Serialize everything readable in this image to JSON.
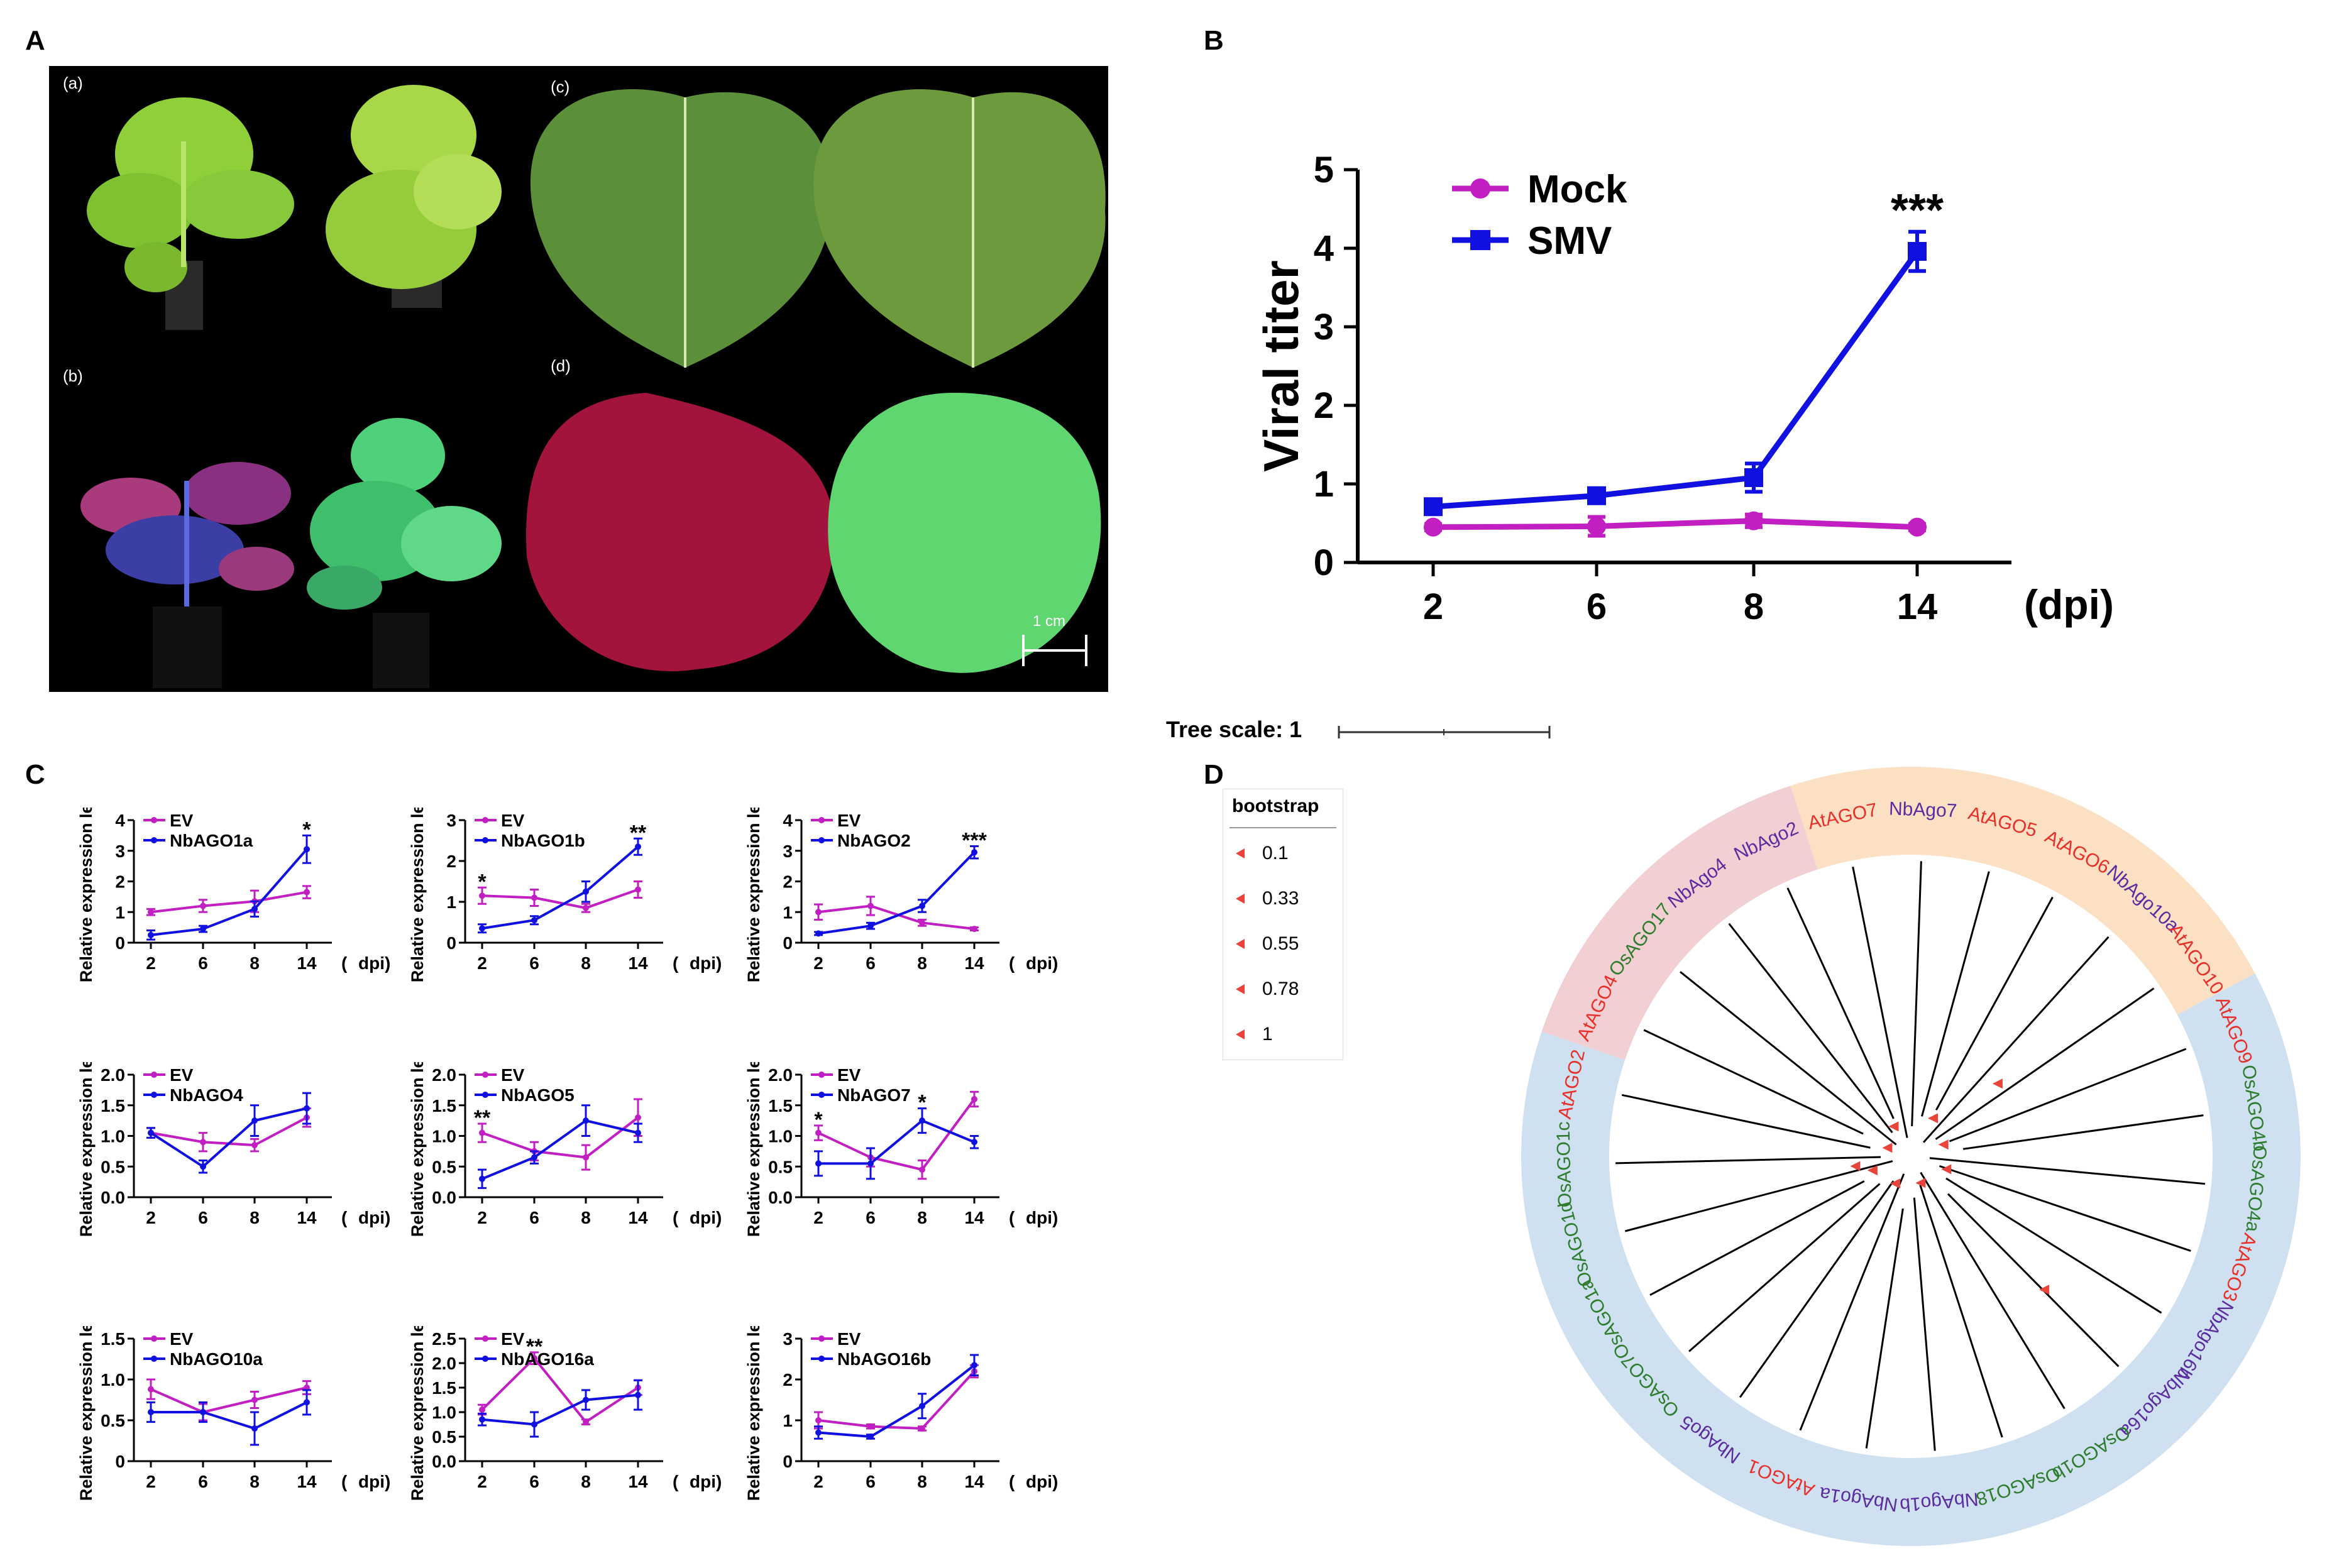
{
  "panels": {
    "a": "A",
    "b": "B",
    "c": "C",
    "d": "D"
  },
  "photo": {
    "sub_a": "(a)",
    "sub_b": "(b)",
    "sub_c": "(c)",
    "sub_d": "(d)",
    "scale": "1 cm"
  },
  "colors": {
    "mock": "#c21fc3",
    "smv": "#1010e0",
    "ev": "#c21fc3",
    "ago": "#1010e0",
    "red_label": "#e8302a",
    "purple_label": "#5a2ca0",
    "green_label": "#2e7d2e",
    "pink_band": "#f2cfd2",
    "orange_band": "#fbe0c4",
    "blue_band": "#cfe0f1"
  },
  "chart_data": [
    {
      "type": "line",
      "id": "B",
      "ylabel": "Viral titer",
      "xlabel": "(dpi)",
      "categories": [
        "2",
        "6",
        "8",
        "14"
      ],
      "ylim": [
        0,
        5
      ],
      "yticks": [
        "0",
        "1",
        "2",
        "3",
        "4",
        "5"
      ],
      "series": [
        {
          "name": "Mock",
          "values": [
            0.45,
            0.46,
            0.53,
            0.45
          ],
          "errors": [
            0.04,
            0.12,
            0.08,
            0.04
          ]
        },
        {
          "name": "SMV",
          "values": [
            0.71,
            0.85,
            1.08,
            3.96
          ],
          "errors": [
            0.05,
            0.05,
            0.18,
            0.25
          ]
        }
      ],
      "annotations": [
        {
          "category": "14",
          "text": "***"
        }
      ]
    },
    {
      "type": "line",
      "id": "C1",
      "ylabel": "Relative expression level",
      "xlabel": "dpi",
      "categories": [
        "2",
        "6",
        "8",
        "14"
      ],
      "ylim": [
        0,
        4
      ],
      "yticks": [
        "0",
        "1",
        "2",
        "3",
        "4"
      ],
      "series": [
        {
          "name": "EV",
          "values": [
            1.0,
            1.2,
            1.35,
            1.65
          ],
          "errors": [
            0.1,
            0.2,
            0.35,
            0.2
          ]
        },
        {
          "name": "NbAGO1a",
          "values": [
            0.25,
            0.45,
            1.1,
            3.05
          ],
          "errors": [
            0.15,
            0.1,
            0.25,
            0.45
          ]
        }
      ],
      "annotations": [
        {
          "category": "14",
          "text": "*"
        }
      ]
    },
    {
      "type": "line",
      "id": "C2",
      "ylabel": "Relative expression level",
      "xlabel": "dpi",
      "categories": [
        "2",
        "6",
        "8",
        "14"
      ],
      "ylim": [
        0,
        3
      ],
      "yticks": [
        "0",
        "1",
        "2",
        "3"
      ],
      "series": [
        {
          "name": "EV",
          "values": [
            1.15,
            1.1,
            0.85,
            1.3
          ],
          "errors": [
            0.2,
            0.2,
            0.1,
            0.2
          ]
        },
        {
          "name": "NbAGO1b",
          "values": [
            0.35,
            0.55,
            1.25,
            2.35
          ],
          "errors": [
            0.1,
            0.1,
            0.25,
            0.2
          ]
        }
      ],
      "annotations": [
        {
          "category": "2",
          "text": "*"
        },
        {
          "category": "14",
          "text": "**"
        }
      ]
    },
    {
      "type": "line",
      "id": "C3",
      "ylabel": "Relative expression level",
      "xlabel": "dpi",
      "categories": [
        "2",
        "6",
        "8",
        "14"
      ],
      "ylim": [
        0,
        4
      ],
      "yticks": [
        "0",
        "1",
        "2",
        "3",
        "4"
      ],
      "series": [
        {
          "name": "EV",
          "values": [
            1.0,
            1.2,
            0.65,
            0.45
          ],
          "errors": [
            0.25,
            0.3,
            0.1,
            0.05
          ]
        },
        {
          "name": "NbAGO2",
          "values": [
            0.3,
            0.55,
            1.2,
            2.95
          ],
          "errors": [
            0.05,
            0.1,
            0.2,
            0.2
          ]
        }
      ],
      "annotations": [
        {
          "category": "14",
          "text": "***"
        }
      ]
    },
    {
      "type": "line",
      "id": "C4",
      "ylabel": "Relative expression level",
      "xlabel": "dpi",
      "categories": [
        "2",
        "6",
        "8",
        "14"
      ],
      "ylim": [
        0,
        2.0
      ],
      "yticks": [
        "0.0",
        "0.5",
        "1.0",
        "1.5",
        "2.0"
      ],
      "series": [
        {
          "name": "EV",
          "values": [
            1.05,
            0.9,
            0.85,
            1.3
          ],
          "errors": [
            0.08,
            0.15,
            0.1,
            0.15
          ]
        },
        {
          "name": "NbAGO4",
          "values": [
            1.05,
            0.5,
            1.25,
            1.45
          ],
          "errors": [
            0.08,
            0.1,
            0.25,
            0.25
          ]
        }
      ],
      "annotations": []
    },
    {
      "type": "line",
      "id": "C5",
      "ylabel": "Relative expression level",
      "xlabel": "dpi",
      "categories": [
        "2",
        "6",
        "8",
        "14"
      ],
      "ylim": [
        0,
        2.0
      ],
      "yticks": [
        "0.0",
        "0.5",
        "1.0",
        "1.5",
        "2.0"
      ],
      "series": [
        {
          "name": "EV",
          "values": [
            1.05,
            0.75,
            0.65,
            1.3
          ],
          "errors": [
            0.15,
            0.15,
            0.2,
            0.3
          ]
        },
        {
          "name": "NbAGO5",
          "values": [
            0.3,
            0.65,
            1.25,
            1.05
          ],
          "errors": [
            0.15,
            0.1,
            0.25,
            0.15
          ]
        }
      ],
      "annotations": [
        {
          "category": "2",
          "text": "**"
        }
      ]
    },
    {
      "type": "line",
      "id": "C6",
      "ylabel": "Relative expression level",
      "xlabel": "dpi",
      "categories": [
        "2",
        "6",
        "8",
        "14"
      ],
      "ylim": [
        0,
        2.0
      ],
      "yticks": [
        "0.0",
        "0.5",
        "1.0",
        "1.5",
        "2.0"
      ],
      "series": [
        {
          "name": "EV",
          "values": [
            1.05,
            0.65,
            0.45,
            1.6
          ],
          "errors": [
            0.12,
            0.15,
            0.15,
            0.12
          ]
        },
        {
          "name": "NbAGO7",
          "values": [
            0.55,
            0.55,
            1.25,
            0.9
          ],
          "errors": [
            0.2,
            0.25,
            0.2,
            0.1
          ]
        }
      ],
      "annotations": [
        {
          "category": "2",
          "text": "*"
        },
        {
          "category": "8",
          "text": "*"
        }
      ]
    },
    {
      "type": "line",
      "id": "C7",
      "ylabel": "Relative expression level",
      "xlabel": "dpi",
      "categories": [
        "2",
        "6",
        "8",
        "14"
      ],
      "ylim": [
        0,
        1.5
      ],
      "yticks": [
        "0",
        "0.5",
        "1.0",
        "1.5"
      ],
      "series": [
        {
          "name": "EV",
          "values": [
            0.88,
            0.6,
            0.75,
            0.9
          ],
          "errors": [
            0.12,
            0.1,
            0.1,
            0.08
          ]
        },
        {
          "name": "NbAGO10a",
          "values": [
            0.6,
            0.6,
            0.4,
            0.72
          ],
          "errors": [
            0.12,
            0.12,
            0.2,
            0.15
          ]
        }
      ],
      "annotations": []
    },
    {
      "type": "line",
      "id": "C8",
      "ylabel": "Relative expression level",
      "xlabel": "dpi",
      "categories": [
        "2",
        "6",
        "8",
        "14"
      ],
      "ylim": [
        0,
        2.5
      ],
      "yticks": [
        "0.0",
        "0.5",
        "1.0",
        "1.5",
        "2.0",
        "2.5"
      ],
      "series": [
        {
          "name": "EV",
          "values": [
            1.05,
            2.1,
            0.8,
            1.5
          ],
          "errors": [
            0.1,
            0.12,
            0.05,
            0.15
          ]
        },
        {
          "name": "NbAGO16a",
          "values": [
            0.85,
            0.75,
            1.25,
            1.35
          ],
          "errors": [
            0.12,
            0.25,
            0.2,
            0.3
          ]
        }
      ],
      "annotations": [
        {
          "category": "6",
          "text": "**"
        }
      ]
    },
    {
      "type": "line",
      "id": "C9",
      "ylabel": "Relative expression level",
      "xlabel": "dpi",
      "categories": [
        "2",
        "6",
        "8",
        "14"
      ],
      "ylim": [
        0,
        3
      ],
      "yticks": [
        "0",
        "1",
        "2",
        "3"
      ],
      "series": [
        {
          "name": "EV",
          "values": [
            1.0,
            0.85,
            0.8,
            2.2
          ],
          "errors": [
            0.2,
            0.05,
            0.05,
            0.15
          ]
        },
        {
          "name": "NbAGO16b",
          "values": [
            0.7,
            0.6,
            1.35,
            2.35
          ],
          "errors": [
            0.15,
            0.05,
            0.3,
            0.25
          ]
        }
      ],
      "annotations": []
    }
  ],
  "tree": {
    "scale_label": "Tree scale: 1",
    "legend_title": "bootstrap",
    "legend_values": [
      "0.1",
      "0.33",
      "0.55",
      "0.78",
      "1"
    ],
    "leaves": [
      {
        "name": "AtAGO7",
        "clade": "orange",
        "color": "red"
      },
      {
        "name": "NbAgo7",
        "clade": "orange",
        "color": "purple"
      },
      {
        "name": "AtAGO5",
        "clade": "orange",
        "color": "red"
      },
      {
        "name": "AtAGO6",
        "clade": "orange",
        "color": "red"
      },
      {
        "name": "NbAgo10a",
        "clade": "orange",
        "color": "purple"
      },
      {
        "name": "AtAGO10",
        "clade": "orange",
        "color": "red"
      },
      {
        "name": "AtAGO9",
        "clade": "blue",
        "color": "red"
      },
      {
        "name": "OsAGO4b",
        "clade": "blue",
        "color": "green"
      },
      {
        "name": "OsAGO4a",
        "clade": "blue",
        "color": "green"
      },
      {
        "name": "AtAGO3",
        "clade": "blue",
        "color": "red"
      },
      {
        "name": "NbAgo16b",
        "clade": "blue",
        "color": "purple"
      },
      {
        "name": "NbAgo16a",
        "clade": "blue",
        "color": "purple"
      },
      {
        "name": "OsAGO1b",
        "clade": "blue",
        "color": "green"
      },
      {
        "name": "OsAGO18",
        "clade": "blue",
        "color": "green"
      },
      {
        "name": "NbAgo1b",
        "clade": "blue",
        "color": "purple"
      },
      {
        "name": "NbAgo1a",
        "clade": "blue",
        "color": "purple"
      },
      {
        "name": "AtAGO1",
        "clade": "blue",
        "color": "red"
      },
      {
        "name": "NbAgo5",
        "clade": "blue",
        "color": "purple"
      },
      {
        "name": "OsAGO7",
        "clade": "blue",
        "color": "green"
      },
      {
        "name": "OsAGO1a",
        "clade": "blue",
        "color": "green"
      },
      {
        "name": "OsAGO1d",
        "clade": "blue",
        "color": "green"
      },
      {
        "name": "OsAGO1c",
        "clade": "blue",
        "color": "green"
      },
      {
        "name": "AtAGO2",
        "clade": "blue",
        "color": "red"
      },
      {
        "name": "AtAGO4",
        "clade": "pink",
        "color": "red"
      },
      {
        "name": "OsAGO17",
        "clade": "pink",
        "color": "green"
      },
      {
        "name": "NbAgo4",
        "clade": "pink",
        "color": "purple"
      },
      {
        "name": "NbAgo2",
        "clade": "pink",
        "color": "purple"
      }
    ]
  }
}
